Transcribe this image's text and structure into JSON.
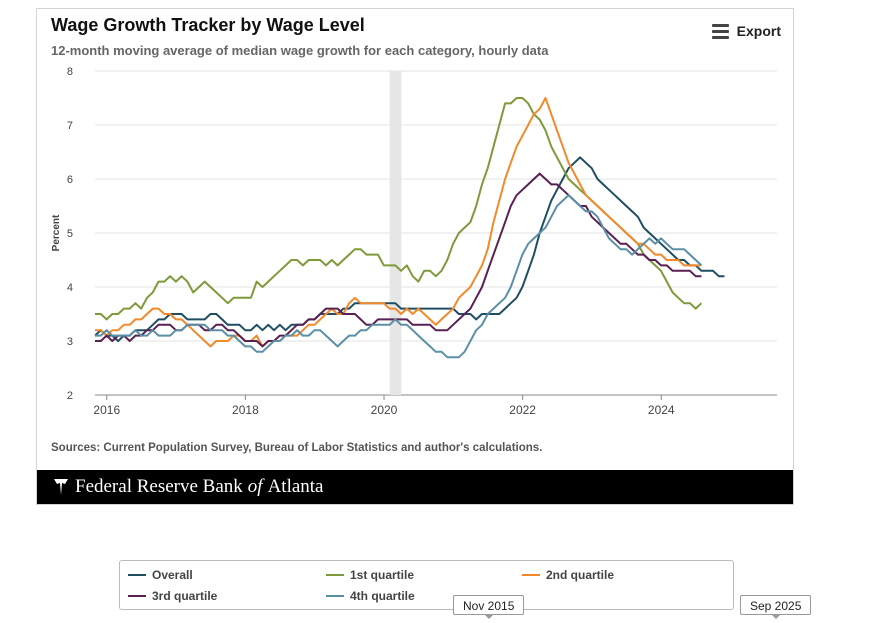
{
  "header": {
    "title": "Wage Growth Tracker by Wage Level",
    "subtitle": "12-month moving average of median wage growth for each category, hourly data",
    "export_label": "Export"
  },
  "sources": "Sources: Current Population Survey, Bureau of Labor Statistics and author's calculations.",
  "brand": {
    "name_pre": "Federal Reserve Bank",
    "name_of": "of",
    "name_post": "Atlanta"
  },
  "navigator": {
    "start_label": "Nov 2015",
    "end_label": "Sep 2025"
  },
  "colors": {
    "Overall": "#1f4e63",
    "1st quartile": "#7f9a3a",
    "2nd quartile": "#f2892b",
    "3rd quartile": "#5a2054",
    "4th quartile": "#5b8fa6"
  },
  "chart_data": {
    "type": "line",
    "title": "Wage Growth Tracker by Wage Level",
    "ylabel": "Percent",
    "xlabel": "",
    "x_start": 2015.83,
    "x_step": 0.08333,
    "xlim": [
      2015.83,
      2025.67
    ],
    "ylim": [
      2,
      8
    ],
    "yticks": [
      2,
      3,
      4,
      5,
      6,
      7,
      8
    ],
    "xticks": [
      2016,
      2018,
      2020,
      2022,
      2024
    ],
    "recession_band": [
      2020.08,
      2020.25
    ],
    "series": [
      {
        "name": "Overall",
        "values": [
          3.1,
          3.2,
          3.1,
          3.1,
          3.0,
          3.1,
          3.1,
          3.2,
          3.2,
          3.2,
          3.3,
          3.4,
          3.4,
          3.5,
          3.5,
          3.5,
          3.4,
          3.4,
          3.4,
          3.4,
          3.5,
          3.5,
          3.4,
          3.3,
          3.3,
          3.3,
          3.2,
          3.2,
          3.3,
          3.2,
          3.3,
          3.2,
          3.3,
          3.2,
          3.3,
          3.3,
          3.3,
          3.4,
          3.4,
          3.5,
          3.5,
          3.5,
          3.5,
          3.6,
          3.6,
          3.7,
          3.7,
          3.7,
          3.7,
          3.7,
          3.7,
          3.7,
          3.7,
          3.6,
          3.6,
          3.6,
          3.6,
          3.6,
          3.6,
          3.6,
          3.6,
          3.6,
          3.6,
          3.5,
          3.5,
          3.5,
          3.4,
          3.5,
          3.5,
          3.5,
          3.5,
          3.6,
          3.7,
          3.8,
          4.0,
          4.3,
          4.6,
          5.0,
          5.3,
          5.6,
          5.8,
          6.0,
          6.2,
          6.3,
          6.4,
          6.3,
          6.2,
          6.0,
          5.9,
          5.8,
          5.7,
          5.6,
          5.5,
          5.4,
          5.3,
          5.1,
          5.0,
          4.9,
          4.8,
          4.7,
          4.6,
          4.5,
          4.5,
          4.4,
          4.4,
          4.3,
          4.3,
          4.3,
          4.2,
          4.2
        ]
      },
      {
        "name": "1st quartile",
        "values": [
          3.5,
          3.5,
          3.4,
          3.5,
          3.5,
          3.6,
          3.6,
          3.7,
          3.6,
          3.8,
          3.9,
          4.1,
          4.1,
          4.2,
          4.1,
          4.2,
          4.1,
          3.9,
          4.0,
          4.1,
          4.0,
          3.9,
          3.8,
          3.7,
          3.8,
          3.8,
          3.8,
          3.8,
          4.1,
          4.0,
          4.1,
          4.2,
          4.3,
          4.4,
          4.5,
          4.5,
          4.4,
          4.5,
          4.5,
          4.5,
          4.4,
          4.5,
          4.4,
          4.5,
          4.6,
          4.7,
          4.7,
          4.6,
          4.6,
          4.6,
          4.4,
          4.4,
          4.4,
          4.3,
          4.4,
          4.2,
          4.1,
          4.3,
          4.3,
          4.2,
          4.3,
          4.5,
          4.8,
          5.0,
          5.1,
          5.2,
          5.5,
          5.9,
          6.2,
          6.6,
          7.0,
          7.4,
          7.4,
          7.5,
          7.5,
          7.4,
          7.2,
          7.1,
          6.9,
          6.6,
          6.4,
          6.2,
          6.0,
          5.9,
          5.8,
          5.7,
          5.6,
          5.5,
          5.4,
          5.3,
          5.2,
          5.1,
          5.0,
          4.9,
          4.8,
          4.6,
          4.5,
          4.4,
          4.3,
          4.1,
          3.9,
          3.8,
          3.7,
          3.7,
          3.6,
          3.7
        ]
      },
      {
        "name": "2nd quartile",
        "values": [
          3.2,
          3.2,
          3.1,
          3.2,
          3.2,
          3.3,
          3.3,
          3.4,
          3.4,
          3.5,
          3.6,
          3.6,
          3.5,
          3.5,
          3.4,
          3.4,
          3.3,
          3.2,
          3.1,
          3.0,
          2.9,
          3.0,
          3.0,
          3.0,
          3.1,
          3.1,
          3.0,
          3.0,
          3.1,
          2.9,
          3.0,
          3.0,
          3.0,
          3.1,
          3.1,
          3.1,
          3.2,
          3.3,
          3.3,
          3.4,
          3.5,
          3.6,
          3.5,
          3.5,
          3.7,
          3.8,
          3.7,
          3.7,
          3.7,
          3.7,
          3.7,
          3.6,
          3.6,
          3.5,
          3.6,
          3.5,
          3.6,
          3.5,
          3.4,
          3.3,
          3.4,
          3.5,
          3.6,
          3.8,
          3.9,
          4.0,
          4.2,
          4.4,
          4.7,
          5.2,
          5.6,
          6.0,
          6.3,
          6.6,
          6.8,
          7.0,
          7.2,
          7.3,
          7.5,
          7.2,
          6.9,
          6.6,
          6.3,
          6.1,
          5.9,
          5.7,
          5.6,
          5.5,
          5.4,
          5.3,
          5.2,
          5.1,
          5.0,
          4.9,
          4.8,
          4.8,
          4.7,
          4.6,
          4.6,
          4.5,
          4.5,
          4.5,
          4.4,
          4.4,
          4.4,
          4.4
        ]
      },
      {
        "name": "3rd quartile",
        "values": [
          3.0,
          3.0,
          3.1,
          3.0,
          3.1,
          3.1,
          3.0,
          3.1,
          3.1,
          3.2,
          3.2,
          3.3,
          3.3,
          3.3,
          3.2,
          3.2,
          3.3,
          3.3,
          3.3,
          3.2,
          3.2,
          3.3,
          3.3,
          3.2,
          3.2,
          3.1,
          3.0,
          3.0,
          3.0,
          2.9,
          3.0,
          3.0,
          3.1,
          3.1,
          3.2,
          3.3,
          3.3,
          3.4,
          3.4,
          3.5,
          3.6,
          3.6,
          3.6,
          3.5,
          3.5,
          3.5,
          3.4,
          3.3,
          3.3,
          3.4,
          3.4,
          3.4,
          3.4,
          3.4,
          3.4,
          3.3,
          3.3,
          3.3,
          3.3,
          3.2,
          3.2,
          3.2,
          3.3,
          3.4,
          3.5,
          3.6,
          3.8,
          4.0,
          4.3,
          4.6,
          4.9,
          5.2,
          5.5,
          5.7,
          5.8,
          5.9,
          6.0,
          6.1,
          6.0,
          5.9,
          5.9,
          5.8,
          5.7,
          5.6,
          5.5,
          5.5,
          5.3,
          5.2,
          5.1,
          5.0,
          4.9,
          4.8,
          4.8,
          4.7,
          4.6,
          4.6,
          4.5,
          4.5,
          4.4,
          4.4,
          4.3,
          4.3,
          4.3,
          4.3,
          4.2,
          4.2
        ]
      },
      {
        "name": "4th quartile",
        "values": [
          3.1,
          3.1,
          3.2,
          3.1,
          3.1,
          3.1,
          3.1,
          3.2,
          3.1,
          3.1,
          3.2,
          3.1,
          3.1,
          3.1,
          3.2,
          3.2,
          3.3,
          3.3,
          3.3,
          3.3,
          3.2,
          3.2,
          3.2,
          3.1,
          3.1,
          3.0,
          2.9,
          2.9,
          2.8,
          2.8,
          2.9,
          3.0,
          3.0,
          3.1,
          3.1,
          3.2,
          3.1,
          3.1,
          3.2,
          3.2,
          3.1,
          3.0,
          2.9,
          3.0,
          3.1,
          3.1,
          3.2,
          3.2,
          3.3,
          3.3,
          3.3,
          3.3,
          3.4,
          3.3,
          3.3,
          3.2,
          3.1,
          3.0,
          2.9,
          2.8,
          2.8,
          2.7,
          2.7,
          2.7,
          2.8,
          3.0,
          3.2,
          3.3,
          3.5,
          3.6,
          3.7,
          3.8,
          4.0,
          4.3,
          4.6,
          4.8,
          4.9,
          5.0,
          5.1,
          5.3,
          5.5,
          5.6,
          5.7,
          5.6,
          5.5,
          5.4,
          5.4,
          5.3,
          5.1,
          4.9,
          4.8,
          4.7,
          4.7,
          4.6,
          4.7,
          4.8,
          4.9,
          4.8,
          4.9,
          4.8,
          4.7,
          4.7,
          4.7,
          4.6,
          4.5,
          4.4
        ]
      }
    ]
  }
}
